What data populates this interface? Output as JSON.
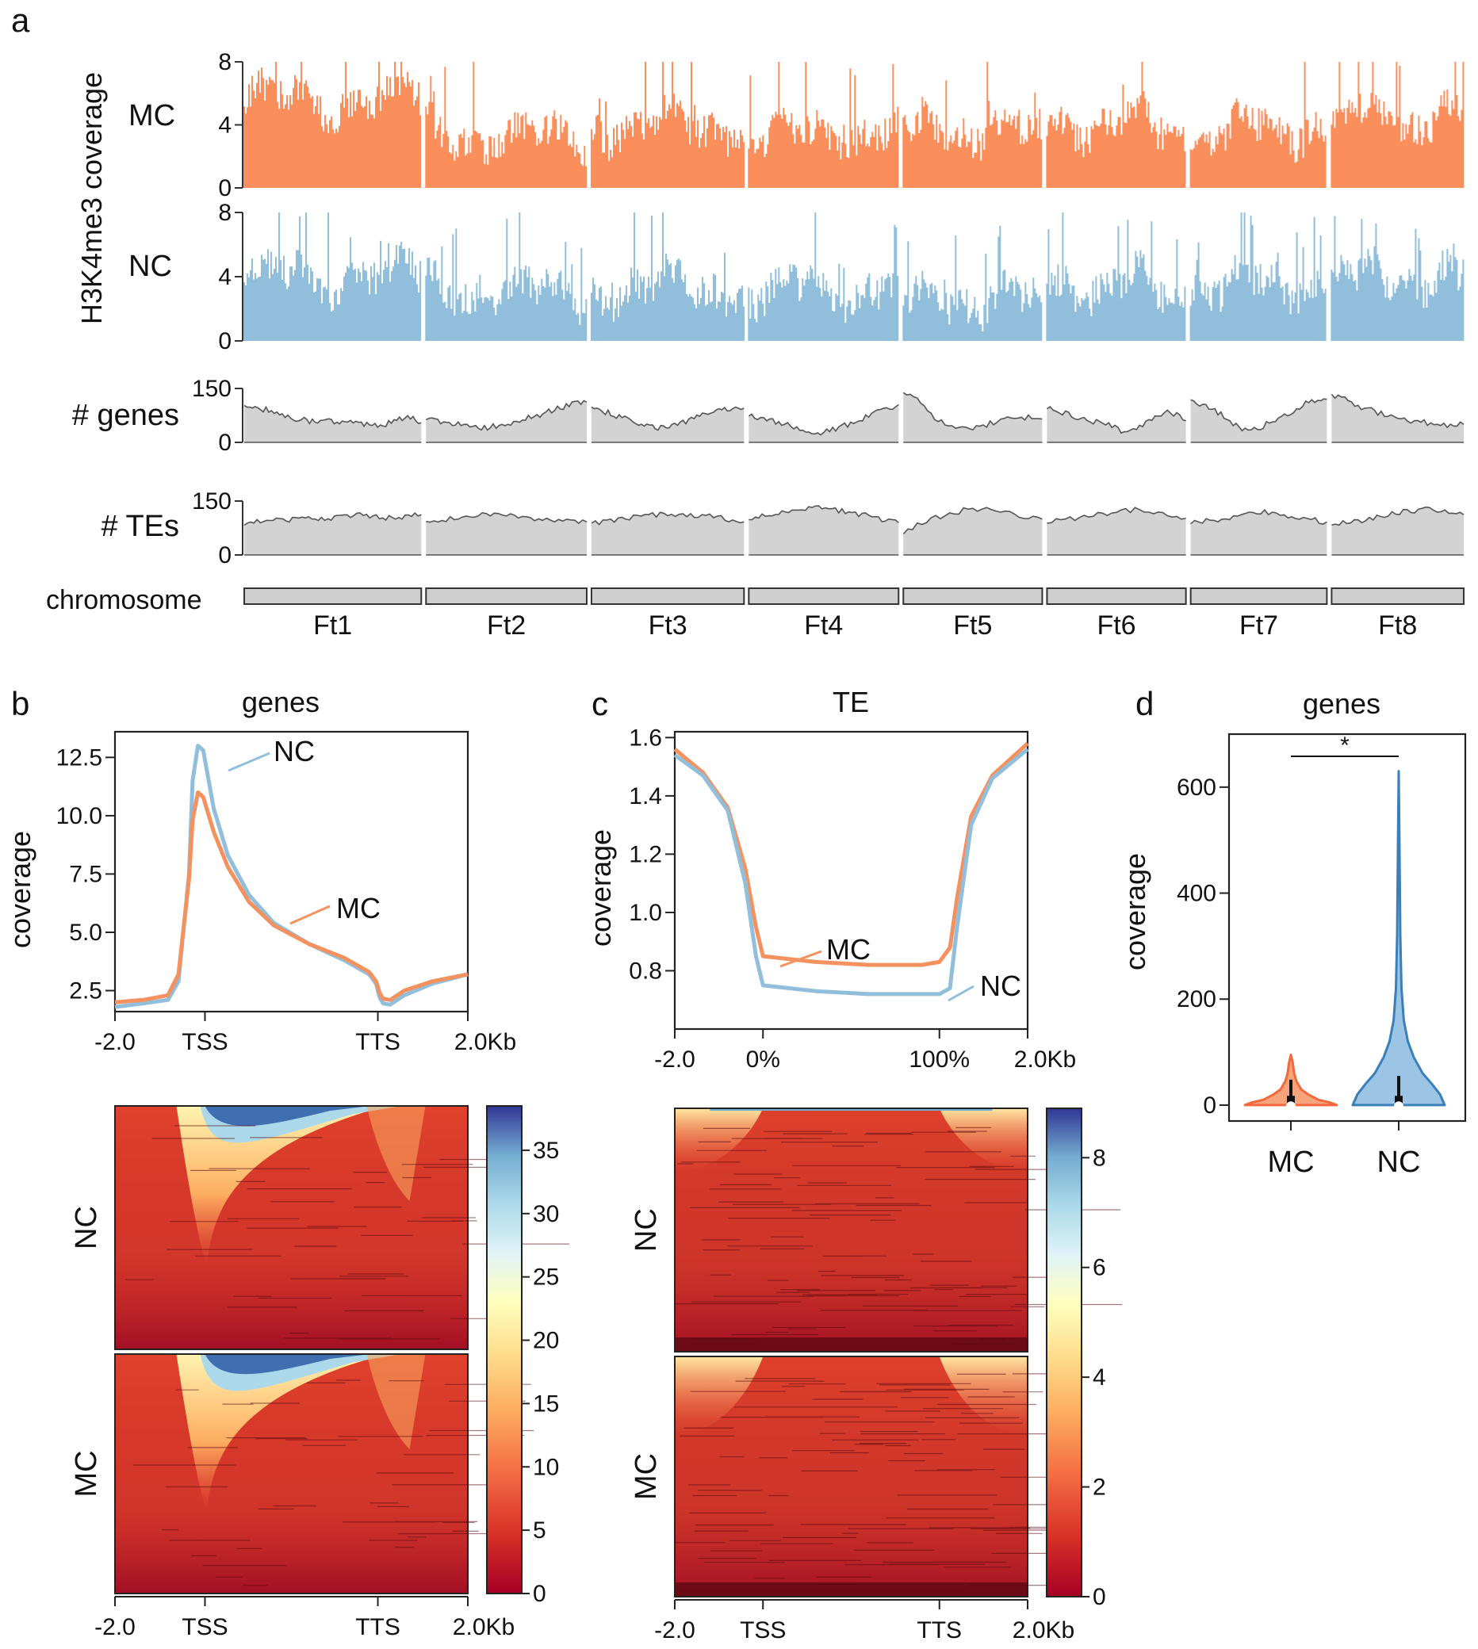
{
  "figure": {
    "panels": [
      {
        "letter": "a"
      },
      {
        "letter": "b",
        "title": "genes"
      },
      {
        "letter": "c",
        "title": "TE"
      },
      {
        "letter": "d",
        "title": "genes"
      }
    ]
  },
  "chart_data": [
    {
      "id": "a",
      "type": "area",
      "title": "",
      "ylabel": "H3K4me3 coverage",
      "chromosomes": [
        "Ft1",
        "Ft2",
        "Ft3",
        "Ft4",
        "Ft5",
        "Ft6",
        "Ft7",
        "Ft8"
      ],
      "chromosome_weights": [
        1.3,
        1.18,
        1.12,
        1.1,
        1.02,
        1.02,
        1.0,
        0.97
      ],
      "chromosome_label": "chromosome",
      "tracks": [
        {
          "name": "MC",
          "color": "#fa8f5c",
          "ylim": [
            0,
            8
          ],
          "ticks": [
            0,
            4,
            8
          ],
          "base_level": [
            5.6,
            3.2,
            4.0,
            3.4,
            3.6,
            4.0,
            3.8,
            4.4
          ],
          "range": "0-8",
          "levels": [
            6,
            5,
            5,
            4,
            4,
            4,
            3,
            3,
            2,
            2,
            3,
            3,
            4,
            4,
            5,
            5,
            4,
            4,
            3,
            3,
            4,
            5,
            5,
            6
          ]
        },
        {
          "name": "NC",
          "color": "#91bfdb",
          "ylim": [
            0,
            8
          ],
          "ticks": [
            0,
            4,
            8
          ],
          "base_level": [
            4.0,
            3.0,
            3.4,
            3.2,
            2.6,
            3.4,
            3.6,
            3.8
          ],
          "range": "0-8",
          "levels": [
            5,
            4,
            3,
            2,
            2,
            3,
            3,
            4,
            5,
            4,
            2,
            2,
            3,
            4,
            4,
            5,
            4,
            3,
            2,
            2,
            3,
            4,
            4,
            5
          ]
        },
        {
          "name": "# genes",
          "color": "#d3d3d3",
          "ylim": [
            0,
            150
          ],
          "ticks": [
            0,
            150
          ],
          "series": [
            [
              105,
              95,
              88,
              70,
              65,
              58,
              60,
              55,
              62,
              50,
              45,
              58,
              70,
              55
            ],
            [
              65,
              55,
              52,
              45,
              40,
              48,
              55,
              68,
              80,
              95,
              105,
              112
            ],
            [
              100,
              85,
              70,
              60,
              48,
              40,
              50,
              62,
              75,
              85,
              92,
              95
            ],
            [
              75,
              65,
              55,
              42,
              30,
              28,
              40,
              55,
              72,
              90,
              105
            ],
            [
              140,
              110,
              60,
              45,
              40,
              52,
              68,
              70,
              65
            ],
            [
              95,
              82,
              70,
              58,
              48,
              30,
              45,
              70,
              85,
              60
            ],
            [
              120,
              100,
              80,
              45,
              32,
              50,
              70,
              95,
              115,
              120
            ],
            [
              135,
              115,
              95,
              80,
              68,
              60,
              52,
              48,
              50
            ]
          ]
        },
        {
          "name": "# TEs",
          "color": "#d3d3d3",
          "ylim": [
            0,
            150
          ],
          "ticks": [
            0,
            150
          ],
          "series": [
            [
              85,
              92,
              98,
              100,
              104,
              102,
              108,
              110,
              106,
              104,
              108,
              112
            ],
            [
              95,
              100,
              108,
              112,
              110,
              104,
              100,
              98,
              92
            ],
            [
              90,
              96,
              102,
              110,
              115,
              112,
              108,
              100,
              92
            ],
            [
              100,
              108,
              116,
              124,
              130,
              126,
              118,
              110,
              100,
              90
            ],
            [
              60,
              95,
              115,
              130,
              120,
              110,
              100
            ],
            [
              90,
              100,
              110,
              120,
              128,
              115,
              102
            ],
            [
              88,
              95,
              105,
              122,
              118,
              108,
              100,
              92
            ],
            [
              85,
              92,
              100,
              112,
              120,
              130,
              124,
              112
            ]
          ]
        }
      ]
    },
    {
      "id": "b",
      "type": "line",
      "title": "genes",
      "xlabel": "",
      "ylabel": "coverage",
      "x_ticks": [
        "-2.0",
        "TSS",
        "TTS",
        "2.0Kb"
      ],
      "y_ticks": [
        "2.5",
        "5.0",
        "7.5",
        "10.0",
        "12.5"
      ],
      "ylim": [
        1.6,
        13.6
      ],
      "x": [
        0,
        0.08,
        0.15,
        0.18,
        0.21,
        0.22,
        0.235,
        0.25,
        0.28,
        0.32,
        0.38,
        0.45,
        0.55,
        0.65,
        0.72,
        0.74,
        0.75,
        0.76,
        0.78,
        0.82,
        0.9,
        1.0
      ],
      "series": [
        {
          "name": "NC",
          "color": "#91bfdb",
          "values": [
            1.8,
            1.95,
            2.1,
            2.9,
            7.5,
            11.5,
            13.0,
            12.8,
            10.3,
            8.3,
            6.6,
            5.4,
            4.5,
            3.8,
            3.2,
            2.8,
            2.2,
            1.95,
            1.9,
            2.3,
            2.8,
            3.2
          ]
        },
        {
          "name": "MC",
          "color": "#f4915f",
          "values": [
            2.0,
            2.1,
            2.3,
            3.2,
            7.3,
            9.8,
            11.0,
            10.8,
            9.3,
            7.8,
            6.3,
            5.3,
            4.5,
            3.9,
            3.3,
            2.9,
            2.4,
            2.15,
            2.1,
            2.5,
            2.9,
            3.2
          ]
        }
      ],
      "annotations": [
        "NC",
        "MC"
      ],
      "heatmap": {
        "rows": [
          "NC",
          "MC"
        ],
        "colorbar_ticks": [
          0,
          5,
          10,
          15,
          20,
          25,
          30,
          35
        ],
        "colorbar_range": [
          0,
          38.5
        ],
        "x_ticks": [
          "-2.0",
          "TSS",
          "TTS",
          "2.0Kb"
        ]
      }
    },
    {
      "id": "c",
      "type": "line",
      "title": "TE",
      "xlabel": "",
      "ylabel": "coverage",
      "x_ticks": [
        "-2.0",
        "0%",
        "100%",
        "2.0Kb"
      ],
      "y_ticks": [
        "0.8",
        "1.0",
        "1.2",
        "1.4",
        "1.6"
      ],
      "ylim": [
        0.6,
        1.62
      ],
      "x": [
        0,
        0.08,
        0.15,
        0.2,
        0.23,
        0.25,
        0.4,
        0.55,
        0.7,
        0.75,
        0.78,
        0.8,
        0.84,
        0.9,
        1.0
      ],
      "series": [
        {
          "name": "MC",
          "color": "#f4915f",
          "values": [
            1.56,
            1.48,
            1.36,
            1.15,
            0.95,
            0.85,
            0.83,
            0.82,
            0.82,
            0.83,
            0.88,
            1.05,
            1.33,
            1.47,
            1.58
          ]
        },
        {
          "name": "NC",
          "color": "#91bfdb",
          "values": [
            1.54,
            1.47,
            1.35,
            1.1,
            0.85,
            0.75,
            0.73,
            0.72,
            0.72,
            0.72,
            0.74,
            0.95,
            1.3,
            1.46,
            1.56
          ]
        }
      ],
      "annotations": [
        "MC",
        "NC"
      ],
      "heatmap": {
        "rows": [
          "NC",
          "MC"
        ],
        "colorbar_ticks": [
          0,
          2,
          4,
          6,
          8
        ],
        "colorbar_range": [
          0,
          8.9
        ],
        "x_ticks": [
          "-2.0",
          "TSS",
          "TTS",
          "2.0Kb"
        ]
      }
    },
    {
      "id": "d",
      "type": "violin",
      "title": "genes",
      "ylabel": "coverage",
      "categories": [
        "MC",
        "NC"
      ],
      "ylim": [
        -30,
        700
      ],
      "y_ticks": [
        0,
        200,
        400,
        600
      ],
      "significance": "*",
      "violins": [
        {
          "name": "MC",
          "color": "#f26a3c",
          "fill": "#f7a47c",
          "max": 95,
          "median": 10,
          "q1": 0,
          "q3": 48,
          "profile": [
            [
              0,
              1.0
            ],
            [
              5,
              0.85
            ],
            [
              10,
              0.6
            ],
            [
              20,
              0.38
            ],
            [
              30,
              0.22
            ],
            [
              45,
              0.12
            ],
            [
              60,
              0.07
            ],
            [
              80,
              0.04
            ],
            [
              95,
              0.0
            ]
          ]
        },
        {
          "name": "NC",
          "color": "#3b7fb8",
          "fill": "#9cc4e4",
          "max": 630,
          "median": 10,
          "q1": 0,
          "q3": 55,
          "profile": [
            [
              0,
              1.0
            ],
            [
              20,
              0.9
            ],
            [
              40,
              0.72
            ],
            [
              60,
              0.52
            ],
            [
              90,
              0.33
            ],
            [
              120,
              0.2
            ],
            [
              160,
              0.11
            ],
            [
              220,
              0.06
            ],
            [
              320,
              0.035
            ],
            [
              450,
              0.02
            ],
            [
              630,
              0.0
            ]
          ]
        }
      ]
    }
  ]
}
